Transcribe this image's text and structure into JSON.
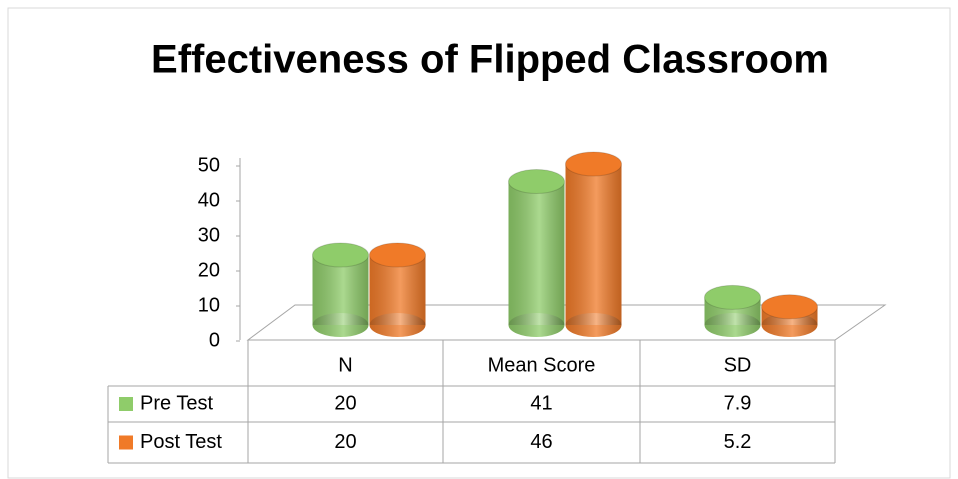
{
  "chart_data": {
    "type": "bar3d",
    "title": "Effectiveness of Flipped Classroom",
    "categories": [
      "N",
      "Mean Score",
      "SD"
    ],
    "series": [
      {
        "name": "Pre Test",
        "color": "#8fcc6a",
        "values": [
          20,
          41,
          7.9
        ]
      },
      {
        "name": "Post Test",
        "color": "#f07a28",
        "values": [
          20,
          46,
          5.2
        ]
      }
    ],
    "ylim": [
      0,
      50
    ],
    "yticks": [
      0,
      10,
      20,
      30,
      40,
      50
    ],
    "data_table": true
  }
}
